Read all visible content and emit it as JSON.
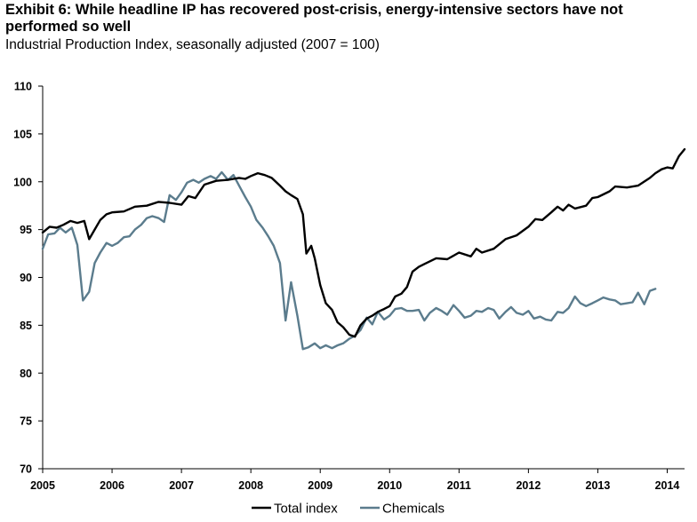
{
  "title": "Exhibit 6: While headline IP has recovered post-crisis, energy-intensive sectors have not performed so well",
  "subtitle": "Industrial Production Index, seasonally adjusted (2007 = 100)",
  "chart_data": {
    "type": "line",
    "title": "Exhibit 6: While headline IP has recovered post-crisis, energy-intensive sectors have not performed so well",
    "subtitle": "Industrial Production Index, seasonally adjusted (2007 = 100)",
    "xlabel": "",
    "ylabel": "",
    "xlim": [
      2005.0,
      2014.25
    ],
    "ylim": [
      70,
      110
    ],
    "yticks": [
      70,
      75,
      80,
      85,
      90,
      95,
      100,
      105,
      110
    ],
    "xticks": [
      "2005",
      "2006",
      "2007",
      "2008",
      "2009",
      "2010",
      "2011",
      "2012",
      "2013",
      "2014"
    ],
    "grid": false,
    "legend": "bottom",
    "series": [
      {
        "name": "Total index",
        "color": "#000000",
        "points": [
          [
            2005.0,
            94.7
          ],
          [
            2005.1,
            95.3
          ],
          [
            2005.2,
            95.2
          ],
          [
            2005.3,
            95.5
          ],
          [
            2005.4,
            95.9
          ],
          [
            2005.5,
            95.7
          ],
          [
            2005.6,
            95.9
          ],
          [
            2005.67,
            94.0
          ],
          [
            2005.75,
            95.0
          ],
          [
            2005.83,
            96.0
          ],
          [
            2005.92,
            96.6
          ],
          [
            2006.0,
            96.8
          ],
          [
            2006.17,
            96.9
          ],
          [
            2006.33,
            97.4
          ],
          [
            2006.5,
            97.5
          ],
          [
            2006.67,
            97.9
          ],
          [
            2006.83,
            97.8
          ],
          [
            2007.0,
            97.6
          ],
          [
            2007.1,
            98.5
          ],
          [
            2007.2,
            98.3
          ],
          [
            2007.33,
            99.7
          ],
          [
            2007.5,
            100.1
          ],
          [
            2007.67,
            100.2
          ],
          [
            2007.83,
            100.4
          ],
          [
            2007.92,
            100.3
          ],
          [
            2008.0,
            100.6
          ],
          [
            2008.1,
            100.9
          ],
          [
            2008.2,
            100.7
          ],
          [
            2008.3,
            100.4
          ],
          [
            2008.42,
            99.6
          ],
          [
            2008.5,
            99.0
          ],
          [
            2008.58,
            98.6
          ],
          [
            2008.67,
            98.2
          ],
          [
            2008.75,
            96.6
          ],
          [
            2008.8,
            92.5
          ],
          [
            2008.87,
            93.3
          ],
          [
            2008.92,
            92.0
          ],
          [
            2009.0,
            89.2
          ],
          [
            2009.08,
            87.3
          ],
          [
            2009.17,
            86.6
          ],
          [
            2009.25,
            85.3
          ],
          [
            2009.33,
            84.8
          ],
          [
            2009.42,
            84.0
          ],
          [
            2009.5,
            83.8
          ],
          [
            2009.58,
            85.0
          ],
          [
            2009.67,
            85.7
          ],
          [
            2009.75,
            86.0
          ],
          [
            2009.83,
            86.4
          ],
          [
            2009.92,
            86.7
          ],
          [
            2010.0,
            87.0
          ],
          [
            2010.08,
            88.0
          ],
          [
            2010.17,
            88.3
          ],
          [
            2010.25,
            89.0
          ],
          [
            2010.33,
            90.6
          ],
          [
            2010.42,
            91.1
          ],
          [
            2010.5,
            91.4
          ],
          [
            2010.67,
            92.0
          ],
          [
            2010.83,
            91.9
          ],
          [
            2011.0,
            92.6
          ],
          [
            2011.17,
            92.2
          ],
          [
            2011.25,
            93.0
          ],
          [
            2011.33,
            92.6
          ],
          [
            2011.5,
            93.0
          ],
          [
            2011.67,
            94.0
          ],
          [
            2011.83,
            94.4
          ],
          [
            2012.0,
            95.3
          ],
          [
            2012.1,
            96.1
          ],
          [
            2012.2,
            96.0
          ],
          [
            2012.33,
            96.8
          ],
          [
            2012.42,
            97.4
          ],
          [
            2012.5,
            97.0
          ],
          [
            2012.58,
            97.6
          ],
          [
            2012.67,
            97.2
          ],
          [
            2012.83,
            97.5
          ],
          [
            2012.92,
            98.3
          ],
          [
            2013.0,
            98.4
          ],
          [
            2013.17,
            99.0
          ],
          [
            2013.25,
            99.5
          ],
          [
            2013.42,
            99.4
          ],
          [
            2013.58,
            99.6
          ],
          [
            2013.75,
            100.4
          ],
          [
            2013.83,
            100.9
          ],
          [
            2013.92,
            101.3
          ],
          [
            2014.0,
            101.5
          ],
          [
            2014.08,
            101.4
          ],
          [
            2014.17,
            102.7
          ],
          [
            2014.25,
            103.4
          ]
        ]
      },
      {
        "name": "Chemicals",
        "color": "#5b7c8d",
        "points": [
          [
            2005.0,
            93.0
          ],
          [
            2005.08,
            94.5
          ],
          [
            2005.17,
            94.6
          ],
          [
            2005.25,
            95.2
          ],
          [
            2005.33,
            94.7
          ],
          [
            2005.42,
            95.2
          ],
          [
            2005.5,
            93.4
          ],
          [
            2005.58,
            87.6
          ],
          [
            2005.67,
            88.5
          ],
          [
            2005.75,
            91.5
          ],
          [
            2005.83,
            92.6
          ],
          [
            2005.92,
            93.6
          ],
          [
            2006.0,
            93.3
          ],
          [
            2006.08,
            93.6
          ],
          [
            2006.17,
            94.2
          ],
          [
            2006.25,
            94.3
          ],
          [
            2006.33,
            95.0
          ],
          [
            2006.42,
            95.5
          ],
          [
            2006.5,
            96.2
          ],
          [
            2006.58,
            96.4
          ],
          [
            2006.67,
            96.2
          ],
          [
            2006.75,
            95.8
          ],
          [
            2006.83,
            98.6
          ],
          [
            2006.92,
            98.1
          ],
          [
            2007.0,
            98.9
          ],
          [
            2007.08,
            99.9
          ],
          [
            2007.17,
            100.2
          ],
          [
            2007.25,
            99.9
          ],
          [
            2007.33,
            100.3
          ],
          [
            2007.42,
            100.6
          ],
          [
            2007.5,
            100.3
          ],
          [
            2007.58,
            101.0
          ],
          [
            2007.67,
            100.2
          ],
          [
            2007.75,
            100.7
          ],
          [
            2007.83,
            99.6
          ],
          [
            2007.92,
            98.4
          ],
          [
            2008.0,
            97.4
          ],
          [
            2008.08,
            96.0
          ],
          [
            2008.17,
            95.2
          ],
          [
            2008.25,
            94.3
          ],
          [
            2008.33,
            93.3
          ],
          [
            2008.42,
            91.5
          ],
          [
            2008.5,
            85.5
          ],
          [
            2008.58,
            89.5
          ],
          [
            2008.67,
            86.0
          ],
          [
            2008.75,
            82.5
          ],
          [
            2008.83,
            82.7
          ],
          [
            2008.92,
            83.1
          ],
          [
            2009.0,
            82.6
          ],
          [
            2009.08,
            82.9
          ],
          [
            2009.17,
            82.6
          ],
          [
            2009.25,
            82.9
          ],
          [
            2009.33,
            83.1
          ],
          [
            2009.42,
            83.6
          ],
          [
            2009.5,
            83.9
          ],
          [
            2009.58,
            84.5
          ],
          [
            2009.67,
            85.8
          ],
          [
            2009.75,
            85.1
          ],
          [
            2009.83,
            86.4
          ],
          [
            2009.92,
            85.6
          ],
          [
            2010.0,
            86.0
          ],
          [
            2010.08,
            86.7
          ],
          [
            2010.17,
            86.8
          ],
          [
            2010.25,
            86.5
          ],
          [
            2010.33,
            86.5
          ],
          [
            2010.42,
            86.6
          ],
          [
            2010.5,
            85.5
          ],
          [
            2010.58,
            86.3
          ],
          [
            2010.67,
            86.8
          ],
          [
            2010.75,
            86.5
          ],
          [
            2010.83,
            86.1
          ],
          [
            2010.92,
            87.1
          ],
          [
            2011.0,
            86.5
          ],
          [
            2011.08,
            85.8
          ],
          [
            2011.17,
            86.0
          ],
          [
            2011.25,
            86.5
          ],
          [
            2011.33,
            86.4
          ],
          [
            2011.42,
            86.8
          ],
          [
            2011.5,
            86.6
          ],
          [
            2011.58,
            85.7
          ],
          [
            2011.67,
            86.4
          ],
          [
            2011.75,
            86.9
          ],
          [
            2011.83,
            86.3
          ],
          [
            2011.92,
            86.1
          ],
          [
            2012.0,
            86.5
          ],
          [
            2012.08,
            85.7
          ],
          [
            2012.17,
            85.9
          ],
          [
            2012.25,
            85.6
          ],
          [
            2012.33,
            85.5
          ],
          [
            2012.42,
            86.4
          ],
          [
            2012.5,
            86.3
          ],
          [
            2012.58,
            86.8
          ],
          [
            2012.67,
            88.0
          ],
          [
            2012.75,
            87.3
          ],
          [
            2012.83,
            87.0
          ],
          [
            2012.92,
            87.3
          ],
          [
            2013.0,
            87.6
          ],
          [
            2013.08,
            87.9
          ],
          [
            2013.17,
            87.7
          ],
          [
            2013.25,
            87.6
          ],
          [
            2013.33,
            87.2
          ],
          [
            2013.42,
            87.3
          ],
          [
            2013.5,
            87.4
          ],
          [
            2013.58,
            88.4
          ],
          [
            2013.67,
            87.2
          ],
          [
            2013.75,
            88.6
          ],
          [
            2013.83,
            88.8
          ]
        ]
      }
    ]
  }
}
